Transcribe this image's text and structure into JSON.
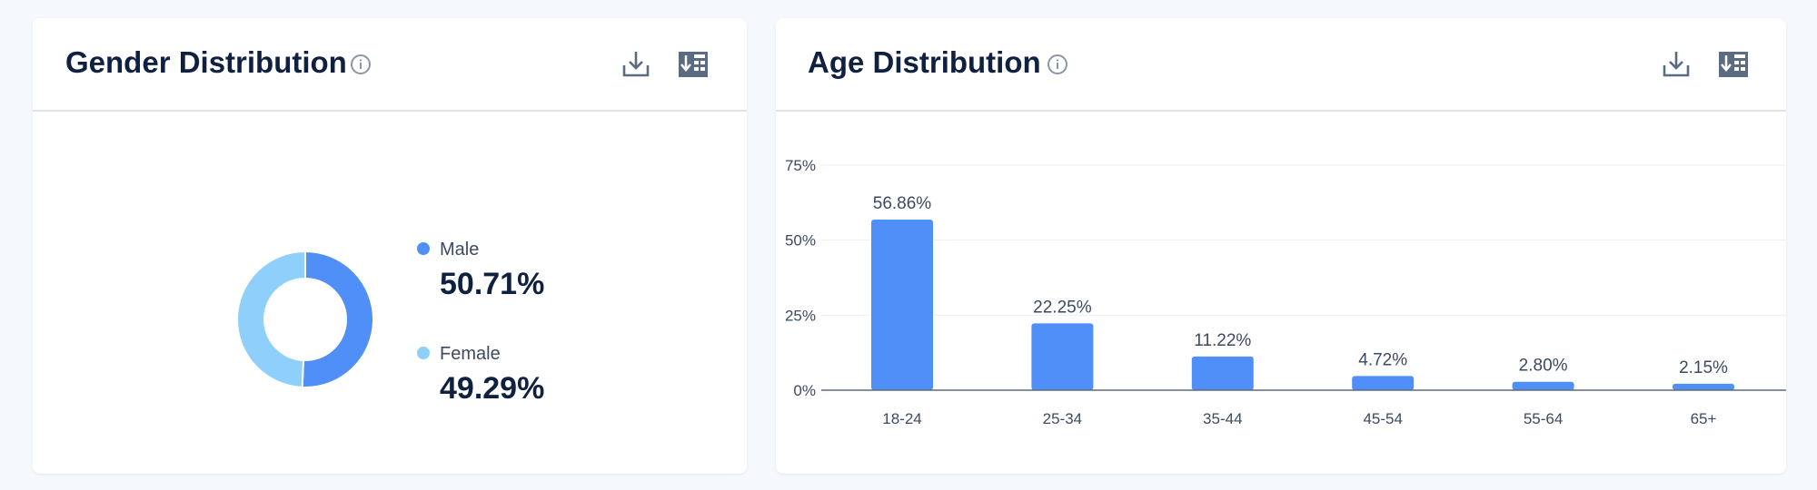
{
  "colors": {
    "male": "#4f8ff7",
    "female": "#8ecffb",
    "bar": "#4f8ff7",
    "title": "#0f2041",
    "icon": "#5b6b82"
  },
  "gender_card": {
    "title": "Gender Distribution",
    "info_icon": "info-circle-icon",
    "download_icon": "download-icon",
    "export_icon": "export-table-icon",
    "legend": [
      {
        "label": "Male",
        "value": "50.71%"
      },
      {
        "label": "Female",
        "value": "49.29%"
      }
    ]
  },
  "age_card": {
    "title": "Age Distribution",
    "info_icon": "info-circle-icon",
    "download_icon": "download-icon",
    "export_icon": "export-table-icon"
  },
  "chart_data": [
    {
      "type": "pie",
      "variant": "donut",
      "categories": [
        "Male",
        "Female"
      ],
      "values": [
        50.71,
        49.29
      ]
    },
    {
      "type": "bar",
      "categories": [
        "18-24",
        "25-34",
        "35-44",
        "45-54",
        "55-64",
        "65+"
      ],
      "values": [
        56.86,
        22.25,
        11.22,
        4.72,
        2.8,
        2.15
      ],
      "data_labels": [
        "56.86%",
        "22.25%",
        "11.22%",
        "4.72%",
        "2.80%",
        "2.15%"
      ],
      "yticks": [
        "0%",
        "25%",
        "50%",
        "75%"
      ],
      "ytick_values": [
        0,
        25,
        50,
        75
      ],
      "ylim": [
        0,
        75
      ],
      "grid": true
    }
  ]
}
